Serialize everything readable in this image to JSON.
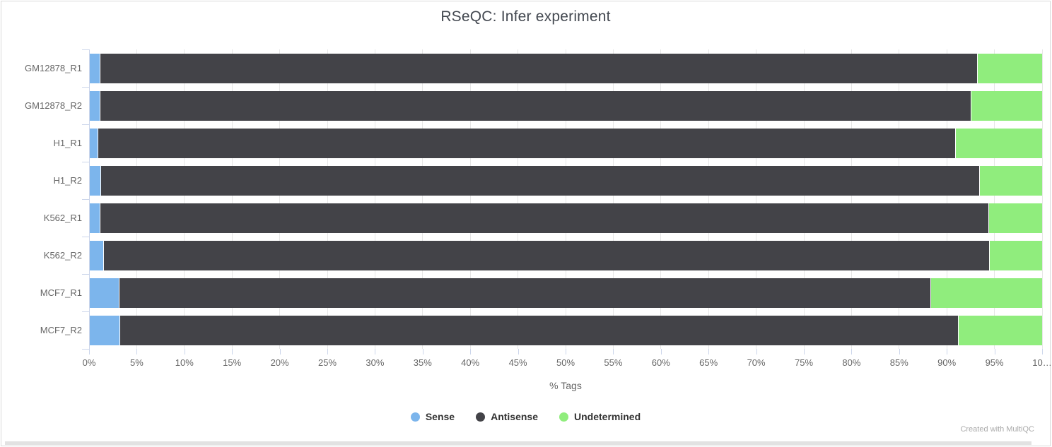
{
  "credit": "Created with MultiQC",
  "colors": {
    "sense": "#7cb5ec",
    "antisense": "#434348",
    "undetermined": "#90ed7d",
    "gridline": "#e6e6e6",
    "axis": "#ccd6eb",
    "tick_label": "#666666",
    "title": "#434850"
  },
  "chart_data": {
    "type": "bar",
    "orientation": "horizontal",
    "stacked": true,
    "title": "RSeQC: Infer experiment",
    "xlabel": "% Tags",
    "ylabel": "",
    "xlim": [
      0,
      100
    ],
    "grid": true,
    "legend_position": "bottom",
    "xticks": [
      0,
      5,
      10,
      15,
      20,
      25,
      30,
      35,
      40,
      45,
      50,
      55,
      60,
      65,
      70,
      75,
      80,
      85,
      90,
      95,
      100
    ],
    "xticklabels": [
      "0%",
      "5%",
      "10%",
      "15%",
      "20%",
      "25%",
      "30%",
      "35%",
      "40%",
      "45%",
      "50%",
      "55%",
      "60%",
      "65%",
      "70%",
      "75%",
      "80%",
      "85%",
      "90%",
      "95%",
      "10…"
    ],
    "categories": [
      "GM12878_R1",
      "GM12878_R2",
      "H1_R1",
      "H1_R2",
      "K562_R1",
      "K562_R2",
      "MCF7_R1",
      "MCF7_R2"
    ],
    "series": [
      {
        "name": "Sense",
        "color": "#7cb5ec",
        "values": [
          1.1,
          1.1,
          0.9,
          1.2,
          1.1,
          1.5,
          3.1,
          3.2
        ]
      },
      {
        "name": "Antisense",
        "color": "#434348",
        "values": [
          92.1,
          91.4,
          90.0,
          92.2,
          93.3,
          92.9,
          85.2,
          88.0
        ]
      },
      {
        "name": "Undetermined",
        "color": "#90ed7d",
        "values": [
          6.8,
          7.5,
          9.1,
          6.6,
          5.6,
          5.6,
          11.7,
          8.8
        ]
      }
    ]
  }
}
